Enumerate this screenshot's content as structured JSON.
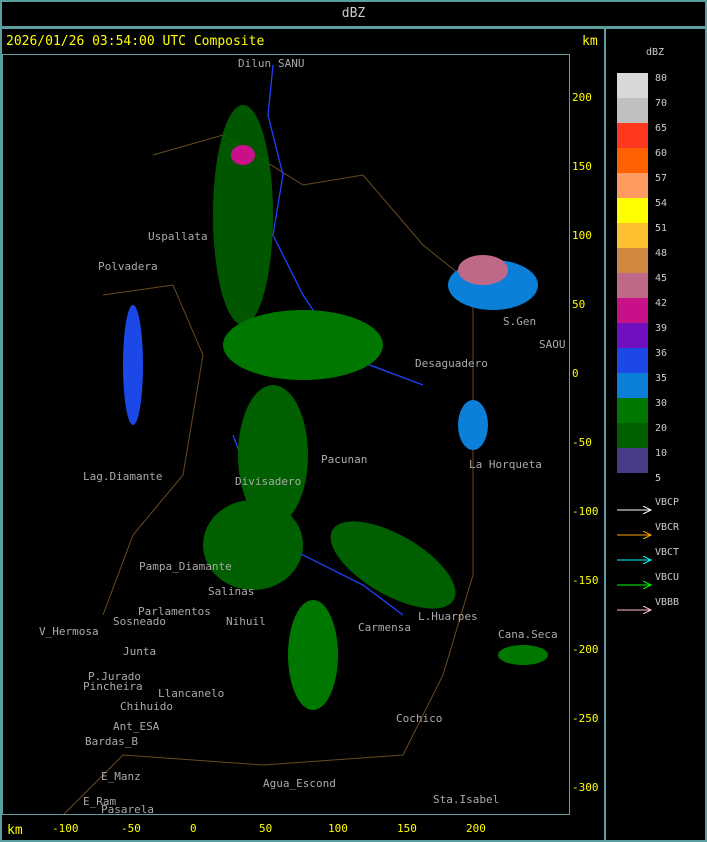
{
  "header": {
    "title": "dBZ"
  },
  "map": {
    "timestamp": "2026/01/26 03:54:00 UTC Composite",
    "unit_right": "km",
    "unit_bottom": "km",
    "y_ticks": [
      "200",
      "150",
      "100",
      "50",
      "0",
      "-50",
      "-100",
      "-150",
      "-200",
      "-250",
      "-300"
    ],
    "x_ticks": [
      "-100",
      "-50",
      "0",
      "50",
      "100",
      "150",
      "200"
    ],
    "places": [
      "Dilun",
      "SANU",
      "Uspallata",
      "Polvadera",
      "Lag.Diamante",
      "Divisadero",
      "Pacunan",
      "Pampa_Diamante",
      "Salinas",
      "Parlamentos",
      "Sosneado",
      "V_Hermosa",
      "Junta",
      "P.Jurado",
      "Pincheira",
      "Chihuido",
      "Llancanelo",
      "Ant_ESA",
      "Bardas_B",
      "E_Manz",
      "E_Ram",
      "Pasarela",
      "Agua_Escond",
      "Cochico",
      "Sta.Isabel",
      "L.Huarpes",
      "Carmensa",
      "Desaguadero",
      "La Horqueta",
      "S.Gen",
      "SAOU",
      "Cana.Seca",
      "Nihuil"
    ]
  },
  "legend": {
    "unit": "dBZ",
    "levels": [
      {
        "value": "80",
        "color": "#d8d8d8"
      },
      {
        "value": "70",
        "color": "#c0c0c0"
      },
      {
        "value": "65",
        "color": "#ff3820"
      },
      {
        "value": "60",
        "color": "#ff6000"
      },
      {
        "value": "57",
        "color": "#ff9a60"
      },
      {
        "value": "54",
        "color": "#ffff00"
      },
      {
        "value": "51",
        "color": "#fcc030"
      },
      {
        "value": "48",
        "color": "#d08840"
      },
      {
        "value": "45",
        "color": "#c06888"
      },
      {
        "value": "42",
        "color": "#c81088"
      },
      {
        "value": "39",
        "color": "#7010c0"
      },
      {
        "value": "36",
        "color": "#1c48e8"
      },
      {
        "value": "35",
        "color": "#0c80d8"
      },
      {
        "value": "30",
        "color": "#007800"
      },
      {
        "value": "20",
        "color": "#006000"
      },
      {
        "value": "10",
        "color": "#483c88"
      }
    ],
    "bottom_value": "5",
    "radars": [
      {
        "name": "VBCP",
        "color": "#ffffff"
      },
      {
        "name": "VBCR",
        "color": "#ffa500"
      },
      {
        "name": "VBCT",
        "color": "#00ffff"
      },
      {
        "name": "VBCU",
        "color": "#00ff00"
      },
      {
        "name": "VBBB",
        "color": "#ffc0cb"
      }
    ]
  }
}
